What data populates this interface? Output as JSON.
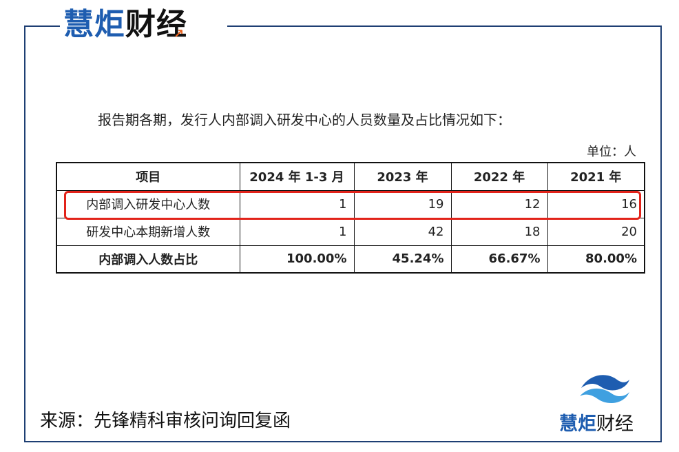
{
  "brand": {
    "name_part1": "慧炬",
    "name_part2": "财经",
    "color_primary": "#1e5db0",
    "color_dark": "#111111",
    "accent": "#e8601c",
    "frame_color": "#1e3f73"
  },
  "intro_text": "报告期各期，发行人内部调入研发中心的人员数量及占比情况如下：",
  "unit_text": "单位：人",
  "table": {
    "headers": [
      "项目",
      "2024 年 1-3 月",
      "2023 年",
      "2022 年",
      "2021 年"
    ],
    "rows": [
      {
        "label": "内部调入研发中心人数",
        "values": [
          "1",
          "19",
          "12",
          "16"
        ],
        "highlighted": true
      },
      {
        "label": "研发中心本期新增人数",
        "values": [
          "1",
          "42",
          "18",
          "20"
        ],
        "highlighted": false
      },
      {
        "label": "内部调入人数占比",
        "values": [
          "100.00%",
          "45.24%",
          "66.67%",
          "80.00%"
        ],
        "bold": true
      }
    ],
    "highlight_color": "#e2231a"
  },
  "source_text": "来源：先锋精科审核问询回复函",
  "logo_icon": "wave-icon"
}
